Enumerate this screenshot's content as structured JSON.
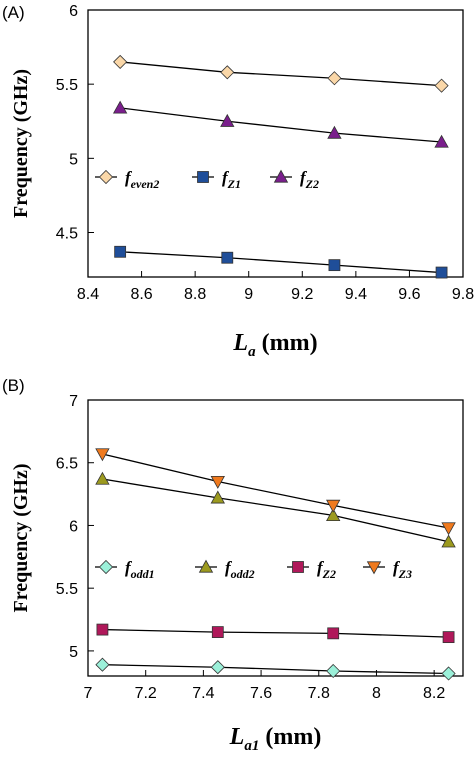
{
  "chart_data": [
    {
      "panel_label": "(A)",
      "type": "line",
      "xlabel": {
        "main": "L",
        "sub": "a",
        "unit": " (mm)"
      },
      "ylabel": "Frequency (GHz)",
      "xlim": [
        8.4,
        9.8
      ],
      "ylim": [
        4.2,
        6.0
      ],
      "xticks": [
        8.4,
        8.6,
        8.8,
        9,
        9.2,
        9.4,
        9.6,
        9.8
      ],
      "xtick_labels": [
        "8.4",
        "8.6",
        "8.8",
        "9",
        "9.2",
        "9.4",
        "9.6",
        "9.8"
      ],
      "yticks": [
        4.5,
        5,
        5.5,
        6
      ],
      "ytick_labels": [
        "4.5",
        "5",
        "5.5",
        "6"
      ],
      "x": [
        8.52,
        8.92,
        9.32,
        9.72
      ],
      "series": [
        {
          "name": "f_even2",
          "legend": {
            "main": "f",
            "sub": "even2"
          },
          "marker": "diamond",
          "color": "#FAD7A8",
          "values": [
            5.65,
            5.58,
            5.54,
            5.49
          ]
        },
        {
          "name": "f_Z1",
          "legend": {
            "main": "f",
            "sub": "Z1"
          },
          "marker": "square",
          "color": "#1F4E99",
          "values": [
            4.37,
            4.33,
            4.28,
            4.23
          ]
        },
        {
          "name": "f_Z2",
          "legend": {
            "main": "f",
            "sub": "Z2"
          },
          "marker": "triangle-up",
          "color": "#7A1E8C",
          "values": [
            5.34,
            5.25,
            5.17,
            5.11
          ]
        }
      ],
      "legend_position": "center-left"
    },
    {
      "panel_label": "(B)",
      "type": "line",
      "xlabel": {
        "main": "L",
        "sub": "a1",
        "unit": " (mm)"
      },
      "ylabel": "Frequency (GHz)",
      "xlim": [
        7.0,
        8.3
      ],
      "ylim": [
        4.8,
        7.0
      ],
      "xticks": [
        7,
        7.2,
        7.4,
        7.6,
        7.8,
        8,
        8.2
      ],
      "xtick_labels": [
        "7",
        "7.2",
        "7.4",
        "7.6",
        "7.8",
        "8",
        "8.2"
      ],
      "yticks": [
        5,
        5.5,
        6,
        6.5,
        7
      ],
      "ytick_labels": [
        "5",
        "5.5",
        "6",
        "6.5",
        "7"
      ],
      "x": [
        7.05,
        7.45,
        7.85,
        8.25
      ],
      "series": [
        {
          "name": "f_odd1",
          "legend": {
            "main": "f",
            "sub": "odd1"
          },
          "marker": "diamond",
          "color": "#9BF0D9",
          "values": [
            4.89,
            4.87,
            4.84,
            4.82
          ]
        },
        {
          "name": "f_odd2",
          "legend": {
            "main": "f",
            "sub": "odd2"
          },
          "marker": "triangle-up",
          "color": "#9C9A1F",
          "values": [
            6.37,
            6.22,
            6.08,
            5.87
          ]
        },
        {
          "name": "f_Z2",
          "legend": {
            "main": "f",
            "sub": "Z2"
          },
          "marker": "square",
          "color": "#B0185A",
          "values": [
            5.17,
            5.15,
            5.14,
            5.11
          ]
        },
        {
          "name": "f_Z3",
          "legend": {
            "main": "f",
            "sub": "Z3"
          },
          "marker": "triangle-down",
          "color": "#F07A1E",
          "values": [
            6.57,
            6.35,
            6.16,
            5.98
          ]
        }
      ],
      "legend_position": "center-left"
    }
  ]
}
